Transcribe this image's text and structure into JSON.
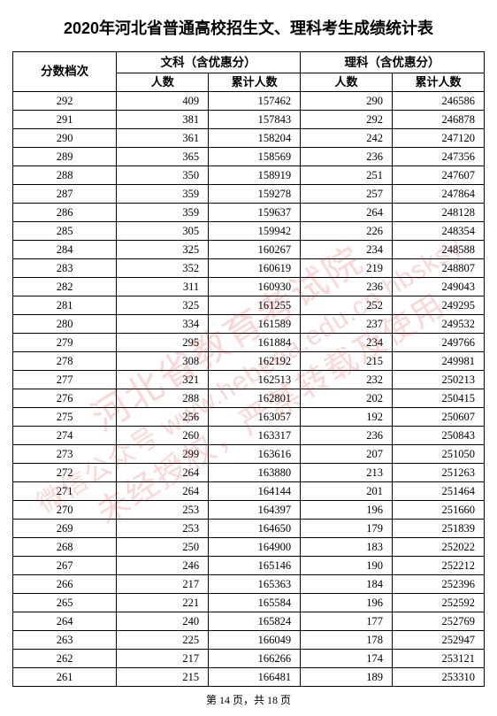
{
  "title": "2020年河北省普通高校招生文、理科考生成绩统计表",
  "columns": {
    "score_header": "分数档次",
    "wen_group": "文科（含优惠分）",
    "li_group": "理科（含优惠分）",
    "count_label": "人数",
    "cum_label": "累计人数"
  },
  "col_widths_pct": [
    22,
    19.5,
    19.5,
    19.5,
    19.5
  ],
  "style": {
    "font_size_body": 12.5,
    "font_size_title": 18,
    "border_color": "#000000",
    "text_color": "#000000",
    "background": "#ffffff",
    "watermark_color": "rgba(230,30,30,0.18)"
  },
  "watermark": {
    "line1": "河北省教育考试院",
    "line2": "微信公众号 www.hebeea.edu.cn hbsksy",
    "line3": "未经授权，严禁转载及使用"
  },
  "footer": "第 14 页，共 18 页",
  "rows": [
    {
      "score": 292,
      "wen_count": 409,
      "wen_cum": 157462,
      "li_count": 290,
      "li_cum": 246586
    },
    {
      "score": 291,
      "wen_count": 381,
      "wen_cum": 157843,
      "li_count": 292,
      "li_cum": 246878
    },
    {
      "score": 290,
      "wen_count": 361,
      "wen_cum": 158204,
      "li_count": 242,
      "li_cum": 247120
    },
    {
      "score": 289,
      "wen_count": 365,
      "wen_cum": 158569,
      "li_count": 236,
      "li_cum": 247356
    },
    {
      "score": 288,
      "wen_count": 350,
      "wen_cum": 158919,
      "li_count": 251,
      "li_cum": 247607
    },
    {
      "score": 287,
      "wen_count": 359,
      "wen_cum": 159278,
      "li_count": 257,
      "li_cum": 247864
    },
    {
      "score": 286,
      "wen_count": 359,
      "wen_cum": 159637,
      "li_count": 264,
      "li_cum": 248128
    },
    {
      "score": 285,
      "wen_count": 305,
      "wen_cum": 159942,
      "li_count": 226,
      "li_cum": 248354
    },
    {
      "score": 284,
      "wen_count": 325,
      "wen_cum": 160267,
      "li_count": 234,
      "li_cum": 248588
    },
    {
      "score": 283,
      "wen_count": 352,
      "wen_cum": 160619,
      "li_count": 219,
      "li_cum": 248807
    },
    {
      "score": 282,
      "wen_count": 311,
      "wen_cum": 160930,
      "li_count": 236,
      "li_cum": 249043
    },
    {
      "score": 281,
      "wen_count": 325,
      "wen_cum": 161255,
      "li_count": 252,
      "li_cum": 249295
    },
    {
      "score": 280,
      "wen_count": 334,
      "wen_cum": 161589,
      "li_count": 237,
      "li_cum": 249532
    },
    {
      "score": 279,
      "wen_count": 295,
      "wen_cum": 161884,
      "li_count": 234,
      "li_cum": 249766
    },
    {
      "score": 278,
      "wen_count": 308,
      "wen_cum": 162192,
      "li_count": 215,
      "li_cum": 249981
    },
    {
      "score": 277,
      "wen_count": 321,
      "wen_cum": 162513,
      "li_count": 232,
      "li_cum": 250213
    },
    {
      "score": 276,
      "wen_count": 288,
      "wen_cum": 162801,
      "li_count": 202,
      "li_cum": 250415
    },
    {
      "score": 275,
      "wen_count": 256,
      "wen_cum": 163057,
      "li_count": 192,
      "li_cum": 250607
    },
    {
      "score": 274,
      "wen_count": 260,
      "wen_cum": 163317,
      "li_count": 236,
      "li_cum": 250843
    },
    {
      "score": 273,
      "wen_count": 299,
      "wen_cum": 163616,
      "li_count": 207,
      "li_cum": 251050
    },
    {
      "score": 272,
      "wen_count": 264,
      "wen_cum": 163880,
      "li_count": 213,
      "li_cum": 251263
    },
    {
      "score": 271,
      "wen_count": 264,
      "wen_cum": 164144,
      "li_count": 201,
      "li_cum": 251464
    },
    {
      "score": 270,
      "wen_count": 253,
      "wen_cum": 164397,
      "li_count": 196,
      "li_cum": 251660
    },
    {
      "score": 269,
      "wen_count": 253,
      "wen_cum": 164650,
      "li_count": 179,
      "li_cum": 251839
    },
    {
      "score": 268,
      "wen_count": 250,
      "wen_cum": 164900,
      "li_count": 183,
      "li_cum": 252022
    },
    {
      "score": 267,
      "wen_count": 246,
      "wen_cum": 165146,
      "li_count": 190,
      "li_cum": 252212
    },
    {
      "score": 266,
      "wen_count": 217,
      "wen_cum": 165363,
      "li_count": 184,
      "li_cum": 252396
    },
    {
      "score": 265,
      "wen_count": 221,
      "wen_cum": 165584,
      "li_count": 196,
      "li_cum": 252592
    },
    {
      "score": 264,
      "wen_count": 240,
      "wen_cum": 165824,
      "li_count": 177,
      "li_cum": 252769
    },
    {
      "score": 263,
      "wen_count": 225,
      "wen_cum": 166049,
      "li_count": 178,
      "li_cum": 252947
    },
    {
      "score": 262,
      "wen_count": 217,
      "wen_cum": 166266,
      "li_count": 174,
      "li_cum": 253121
    },
    {
      "score": 261,
      "wen_count": 215,
      "wen_cum": 166481,
      "li_count": 189,
      "li_cum": 253310
    }
  ]
}
